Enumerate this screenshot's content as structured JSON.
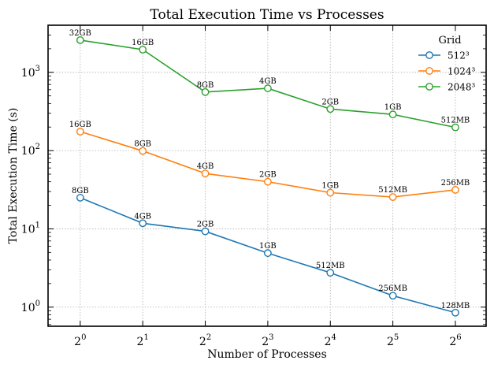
{
  "chart_data": {
    "type": "line",
    "title": "Total Execution Time vs Processes",
    "xlabel": "Number of Processes",
    "ylabel": "Total Execution Time (s)",
    "x_scale": "log2",
    "y_scale": "log10",
    "x": [
      1,
      2,
      4,
      8,
      16,
      32,
      64
    ],
    "x_tick_labels": [
      {
        "base": "2",
        "exp": "0"
      },
      {
        "base": "2",
        "exp": "1"
      },
      {
        "base": "2",
        "exp": "2"
      },
      {
        "base": "2",
        "exp": "3"
      },
      {
        "base": "2",
        "exp": "4"
      },
      {
        "base": "2",
        "exp": "5"
      },
      {
        "base": "2",
        "exp": "6"
      }
    ],
    "y_ticks": [
      1,
      10,
      100,
      1000
    ],
    "y_tick_labels": [
      {
        "base": "10",
        "exp": "0"
      },
      {
        "base": "10",
        "exp": "1"
      },
      {
        "base": "10",
        "exp": "2"
      },
      {
        "base": "10",
        "exp": "3"
      }
    ],
    "ylim": [
      0.57,
      4000
    ],
    "xlim": [
      0.7,
      90
    ],
    "grid": true,
    "legend_title": "Grid",
    "legend_position": "top-right",
    "series": [
      {
        "name": "512³",
        "color": "#1f77b4",
        "values": [
          25,
          11.8,
          9.3,
          4.9,
          2.75,
          1.4,
          0.85
        ],
        "labels": [
          "8GB",
          "4GB",
          "2GB",
          "1GB",
          "512MB",
          "256MB",
          "128MB"
        ]
      },
      {
        "name": "1024³",
        "color": "#ff7f0e",
        "values": [
          175,
          99,
          51,
          40,
          29,
          25.5,
          31.5
        ],
        "labels": [
          "16GB",
          "8GB",
          "4GB",
          "2GB",
          "1GB",
          "512MB",
          "256MB"
        ]
      },
      {
        "name": "2048³",
        "color": "#2ca02c",
        "values": [
          2580,
          1950,
          560,
          625,
          340,
          290,
          198
        ],
        "labels": [
          "32GB",
          "16GB",
          "8GB",
          "4GB",
          "2GB",
          "1GB",
          "512MB"
        ]
      }
    ]
  }
}
